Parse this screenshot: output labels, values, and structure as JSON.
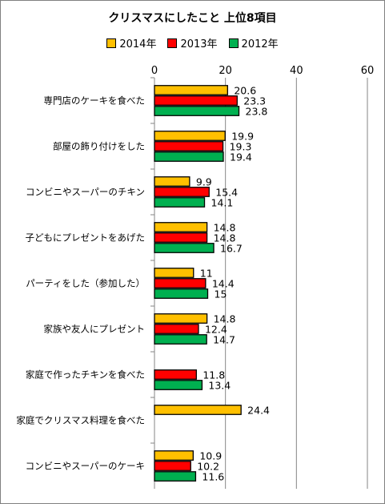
{
  "chart_data": {
    "type": "bar",
    "orientation": "horizontal",
    "title": "クリスマスにしたこと 上位8項目",
    "categories": [
      "専門店のケーキを食べた",
      "部屋の飾り付けをした",
      "コンビニやスーパーのチキン",
      "子どもにプレゼントをあげた",
      "パーティをした（参加した）",
      "家族や友人にプレゼント",
      "家庭で作ったチキンを食べた",
      "家庭でクリスマス料理を食べた",
      "コンビニやスーパーのケーキ"
    ],
    "series": [
      {
        "name": "2014年",
        "color": "#FFC000",
        "values": [
          20.6,
          19.9,
          9.9,
          14.8,
          11,
          14.8,
          null,
          24.4,
          10.9
        ]
      },
      {
        "name": "2013年",
        "color": "#FF0000",
        "values": [
          23.3,
          19.3,
          15.4,
          14.8,
          14.4,
          12.4,
          11.8,
          null,
          10.2
        ]
      },
      {
        "name": "2012年",
        "color": "#00B050",
        "values": [
          23.8,
          19.4,
          14.1,
          16.7,
          15,
          14.7,
          13.4,
          null,
          11.6
        ]
      }
    ],
    "xlim": [
      0,
      60
    ],
    "xticks": [
      0,
      20,
      40,
      60
    ],
    "xaxis_position": "top",
    "grid": true,
    "legend_position": "top"
  }
}
